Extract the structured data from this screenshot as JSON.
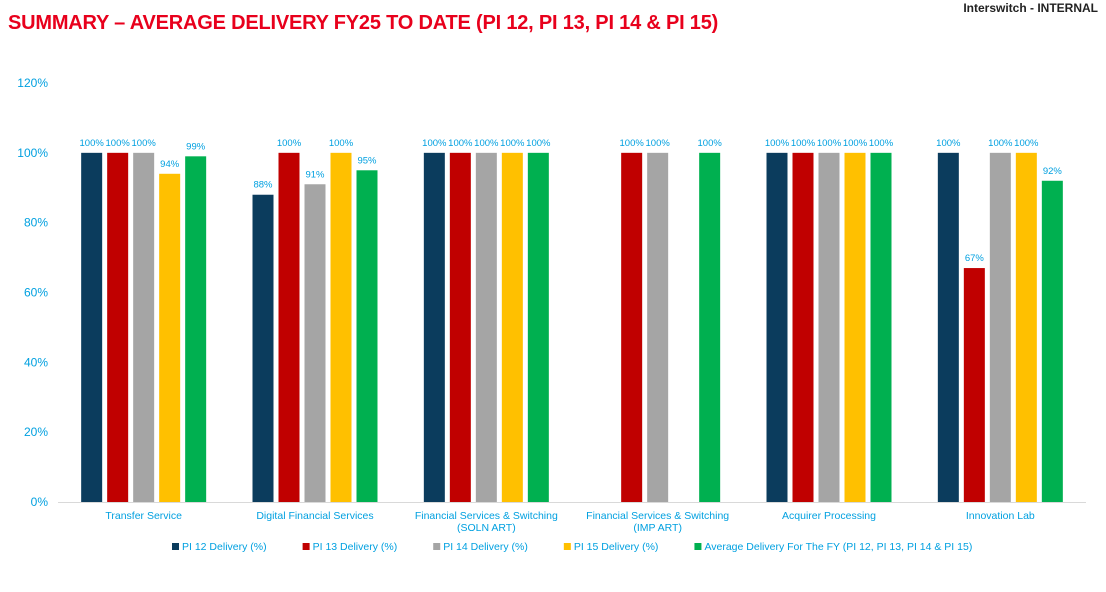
{
  "header": {
    "title": "SUMMARY – AVERAGE DELIVERY FY25 TO DATE (PI 12, PI 13, PI 14 & PI 15)",
    "classification": "Interswitch - INTERNAL"
  },
  "chart_data": {
    "type": "bar",
    "title": "SUMMARY – AVERAGE DELIVERY FY25 TO DATE (PI 12, PI 13, PI 14 & PI 15)",
    "xlabel": "",
    "ylabel": "",
    "ylim": [
      0,
      120
    ],
    "yticks": [
      "0%",
      "20%",
      "40%",
      "60%",
      "80%",
      "100%",
      "120%"
    ],
    "grid": false,
    "legend": "bottom",
    "categories": [
      [
        "Transfer Service"
      ],
      [
        "Digital Financial Services"
      ],
      [
        "Financial Services & Switching",
        "(SOLN ART)"
      ],
      [
        "Financial Services & Switching",
        "(IMP ART)"
      ],
      [
        "Acquirer Processing"
      ],
      [
        "Innovation Lab"
      ]
    ],
    "series": [
      {
        "name": "PI 12 Delivery (%)",
        "color": "#0b3c5d",
        "values": [
          100,
          88,
          100,
          null,
          100,
          100
        ]
      },
      {
        "name": "PI 13 Delivery (%)",
        "color": "#c00000",
        "values": [
          100,
          100,
          100,
          100,
          100,
          67
        ]
      },
      {
        "name": "PI 14 Delivery (%)",
        "color": "#a5a5a5",
        "values": [
          100,
          91,
          100,
          100,
          100,
          100
        ]
      },
      {
        "name": "PI 15 Delivery (%)",
        "color": "#ffc000",
        "values": [
          94,
          100,
          100,
          null,
          100,
          100
        ]
      },
      {
        "name": "Average Delivery For The FY (PI 12, PI 13, PI 14 & PI 15)",
        "color": "#00b050",
        "values": [
          99,
          95,
          100,
          100,
          100,
          92
        ]
      }
    ],
    "label_color": "#00a0e0"
  }
}
